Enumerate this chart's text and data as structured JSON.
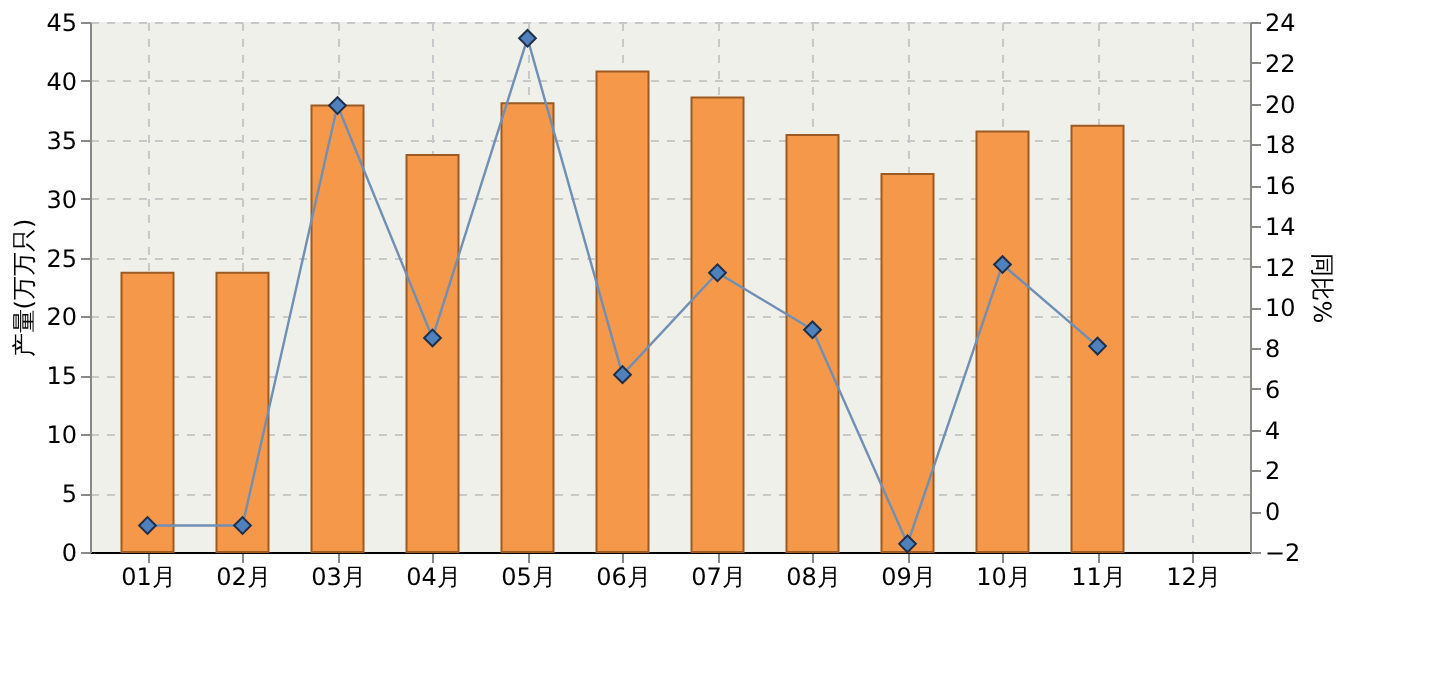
{
  "chart_data": {
    "type": "bar",
    "categories": [
      "01月",
      "02月",
      "03月",
      "04月",
      "05月",
      "06月",
      "07月",
      "08月",
      "09月",
      "10月",
      "11月",
      "12月"
    ],
    "ylabel": "产量(万万只)",
    "y2label": "同比%",
    "ylim": [
      0,
      45
    ],
    "yticks": [
      0,
      5,
      10,
      15,
      20,
      25,
      30,
      35,
      40,
      45
    ],
    "y2lim": [
      -2,
      24
    ],
    "y2ticks": [
      -2,
      0,
      2,
      4,
      6,
      8,
      10,
      12,
      14,
      16,
      18,
      20,
      22,
      24
    ],
    "grid": true,
    "series": [
      {
        "color": "#f5984a",
        "values": [
          23.7,
          23.7,
          37.9,
          33.7,
          38.1,
          40.8,
          38.6,
          35.4,
          32.1,
          35.7,
          36.2,
          null
        ]
      },
      {
        "type": "line",
        "axis": "y2",
        "color": "#4f81bd",
        "marker": "diamond",
        "line_style": "solid",
        "values": [
          -0.7,
          -0.7,
          19.9,
          8.5,
          23.2,
          6.7,
          11.7,
          8.9,
          -1.6,
          12.1,
          8.1,
          null
        ]
      }
    ]
  }
}
